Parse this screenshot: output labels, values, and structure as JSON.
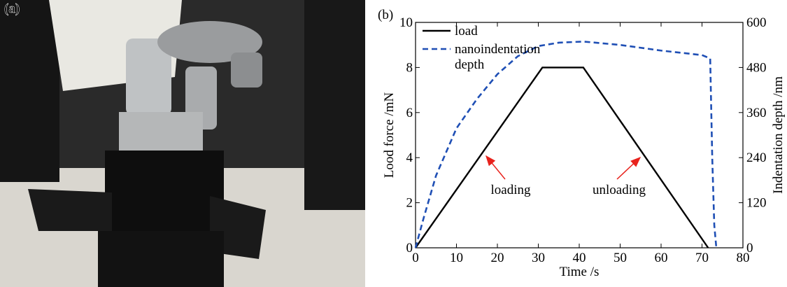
{
  "figure": {
    "panel_a_label": "(a)",
    "panel_b_label": "(b)"
  },
  "chart_data": {
    "type": "line",
    "xlabel": "Time /s",
    "ylabel": "Lood force /mN",
    "y2label": "Indentation depth /nm",
    "xlim": [
      0,
      80
    ],
    "xticks": [
      0,
      10,
      20,
      30,
      40,
      50,
      60,
      70,
      80
    ],
    "ylim": [
      0,
      10
    ],
    "yticks": [
      0,
      2,
      4,
      6,
      8,
      10
    ],
    "y2lim": [
      0,
      600
    ],
    "y2ticks": [
      0,
      120,
      240,
      360,
      480,
      600
    ],
    "legend": "upper left",
    "series": [
      {
        "name": "load",
        "color": "#000000",
        "dash": "solid",
        "x": [
          0,
          31,
          41,
          71.5
        ],
        "values": [
          0,
          8,
          8,
          0
        ]
      },
      {
        "name": "nanoindentation depth",
        "color": "#1f4fb5",
        "dash": "dashed",
        "axis": "y2",
        "x": [
          0,
          2,
          5,
          10,
          15,
          20,
          25,
          30,
          35,
          41,
          50,
          60,
          70,
          72,
          72.5,
          73,
          73.5
        ],
        "values": [
          0,
          80,
          192,
          318,
          396,
          462,
          510,
          537,
          546,
          549,
          540,
          525,
          513,
          504,
          240,
          60,
          0
        ]
      }
    ],
    "annotations": [
      {
        "text": "loading"
      },
      {
        "text": "unloading"
      }
    ]
  }
}
